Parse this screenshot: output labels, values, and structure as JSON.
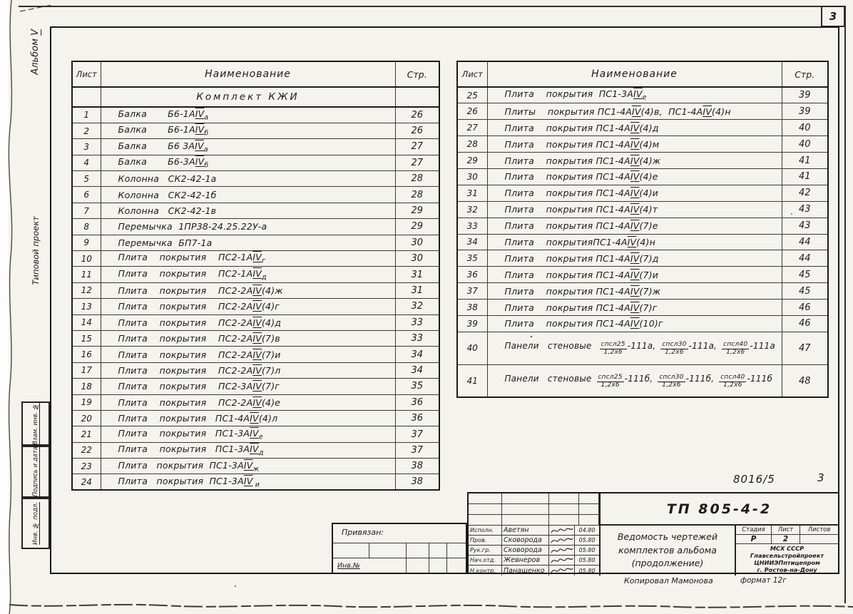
{
  "colors": {
    "paper": "#f4f3ee",
    "ink": "#1b1b1b"
  },
  "page": {
    "corner_sheet_number": "3",
    "doc_number": "8016/5",
    "doc_number_sheet": "3"
  },
  "margin": {
    "album": "Альбом",
    "album_roman": "V",
    "project_type": "Типовой проект",
    "box_replaced_inv": "Взам. инв. №",
    "box_sign_date": "Подпись и дата",
    "box_inv_orig": "Инв. № подл."
  },
  "tables": {
    "headers": {
      "sheet": "Лист",
      "name": "Наименование",
      "page": "Стр."
    },
    "left": {
      "subheader": "Комплект КЖИ",
      "rows": [
        {
          "num": "1",
          "name": "Балка       Б6-1АIVа",
          "page": "26"
        },
        {
          "num": "2",
          "name": "Балка       Б6-1АIVб",
          "page": "26"
        },
        {
          "num": "3",
          "name": "Балка       Б6 3АIVа",
          "page": "27"
        },
        {
          "num": "4",
          "name": "Балка       Б6-3АIVб",
          "page": "27"
        },
        {
          "num": "5",
          "name": "Колонна   СК2-42-1а",
          "page": "28"
        },
        {
          "num": "6",
          "name": "Колонна   СК2-42-1б",
          "page": "28"
        },
        {
          "num": "7",
          "name": "Колонна   СК2-42-1в",
          "page": "29"
        },
        {
          "num": "8",
          "name": "Перемычка  1ПР38-24.25.22У-а",
          "page": "29"
        },
        {
          "num": "9",
          "name": "Перемычка  БП7-1а",
          "page": "30"
        },
        {
          "num": "10",
          "name": "Плита    покрытия    ПС2-1АIVг",
          "page": "30"
        },
        {
          "num": "11",
          "name": "Плита    покрытия    ПС2-1АIVд",
          "page": "31"
        },
        {
          "num": "12",
          "name": "Плита    покрытия    ПС2-2АIV(4)ж",
          "page": "31"
        },
        {
          "num": "13",
          "name": "Плита    покрытия    ПС2-2АIV(4)г",
          "page": "32"
        },
        {
          "num": "14",
          "name": "Плита    покрытия    ПС2-2АIV(4)д",
          "page": "33"
        },
        {
          "num": "15",
          "name": "Плита    покрытия    ПС2-2АIV(7)в",
          "page": "33"
        },
        {
          "num": "16",
          "name": "Плита    покрытия    ПС2-2АIV(7)и",
          "page": "34"
        },
        {
          "num": "17",
          "name": "Плита    покрытия    ПС2-2АIV(7)л",
          "page": "34"
        },
        {
          "num": "18",
          "name": "Плита    покрытия    ПС2-3АIV(7)г",
          "page": "35"
        },
        {
          "num": "19",
          "name": "Плита    покрытия    ПС2-2АIV(4)е",
          "page": "36"
        },
        {
          "num": "20",
          "name": "Плита    покрытия   ПС1-4АIV(4)л",
          "page": "36"
        },
        {
          "num": "21",
          "name": "Плита    покрытия   ПС1-3АIVе",
          "page": "37"
        },
        {
          "num": "22",
          "name": "Плита    покрытия   ПС1-3АIVд",
          "page": "37"
        },
        {
          "num": "23",
          "name": "Плита   покрытия  ПС1-3АIVж",
          "page": "38"
        },
        {
          "num": "24",
          "name": "Плита   покрытия  ПС1-3АIV и",
          "page": "38"
        }
      ]
    },
    "right": {
      "rows": [
        {
          "num": "25",
          "name": "Плита    покрытия  ПС1-3АIVе",
          "page": "39"
        },
        {
          "num": "26",
          "name": "Плиты    покрытия ПС1-4АIV(4)в,  ПС1-4АIV(4)н",
          "page": "39"
        },
        {
          "num": "27",
          "name": "Плита    покрытия ПС1-4АIV(4)д",
          "page": "40"
        },
        {
          "num": "28",
          "name": "Плита    покрытия ПС1-4АIV(4)м",
          "page": "40"
        },
        {
          "num": "29",
          "name": "Плита    покрытия ПС1-4АIV(4)ж",
          "page": "41"
        },
        {
          "num": "30",
          "name": "Плита    покрытия ПС1-4АIV(4)е",
          "page": "41"
        },
        {
          "num": "31",
          "name": "Плита    покрытия ПС1-4АIV(4)и",
          "page": "42"
        },
        {
          "num": "32",
          "name": "Плита    покрытия ПС1-4АIV(4)т",
          "page": "43"
        },
        {
          "num": "33",
          "name": "Плита    покрытия ПС1-4АIV(7)е",
          "page": "43"
        },
        {
          "num": "34",
          "name": "Плита    покрытияПС1-4АIV(4)н",
          "page": "44"
        },
        {
          "num": "35",
          "name": "Плита    покрытия ПС1-4АIV(7)д",
          "page": "44"
        },
        {
          "num": "36",
          "name": "Плита    покрытия ПС1-4АIV(7)и",
          "page": "45"
        },
        {
          "num": "37",
          "name": "Плита    покрытия ПС1-4АIV(7)ж",
          "page": "45"
        },
        {
          "num": "38",
          "name": "Плита    покрытия ПС1-4АIV(7)г",
          "page": "46"
        },
        {
          "num": "39",
          "name": "Плита    покрытия ПС1-4АIV(10)г",
          "page": "46"
        },
        {
          "num": "40",
          "page": "47",
          "parts": [
            {
              "t": "Панели   стеновые  "
            },
            {
              "top": "спсл25",
              "bot": "1,2х6",
              "suf": "-111а, "
            },
            {
              "top": "спсл30",
              "bot": "1,2х6",
              "suf": "-111а, "
            },
            {
              "top": "спсл40",
              "bot": "1,2х6",
              "suf": "-111а"
            }
          ]
        },
        {
          "num": "41",
          "page": "48",
          "parts": [
            {
              "t": "Панели   стеновые "
            },
            {
              "top": "спсл25",
              "bot": "1,2х6",
              "suf": "-111б, "
            },
            {
              "top": "спсл30",
              "bot": "1,2х6",
              "suf": "-111б, "
            },
            {
              "top": "спсл40",
              "bot": "1,2х6",
              "suf": "-111б"
            }
          ]
        }
      ]
    }
  },
  "bind_block": {
    "label": "Привязан:",
    "inv_label": "Инв.№"
  },
  "stamp": {
    "doc_code": "ТП 805-4-2",
    "title_lines": [
      "Ведомость чертежей",
      "комплектов альбома",
      "(продолжение)"
    ],
    "sign_rows": [
      {
        "role": "Исполн.",
        "name": "Аветян",
        "date": "04.80"
      },
      {
        "role": "Пров.",
        "name": "Сковорода",
        "date": "05.80"
      },
      {
        "role": "Рук.гр.",
        "name": "Сковорода",
        "date": "05.80"
      },
      {
        "role": "Нач.отд.",
        "name": "Жевнеров",
        "date": "05.80"
      },
      {
        "role": "Н.контр.",
        "name": "Панащенко",
        "date": "05.80"
      }
    ],
    "stage_header": [
      "Стадия",
      "Лист",
      "Листов"
    ],
    "stage_values": [
      "Р",
      "2",
      ""
    ],
    "org_lines": [
      "МСХ СССР",
      "Главсельстройпроект",
      "ЦНИИЭПптицепром",
      "г. Ростов-на-Дону"
    ],
    "format_note": "формат 12г",
    "copied_by": "Копировал  Мамонова"
  }
}
